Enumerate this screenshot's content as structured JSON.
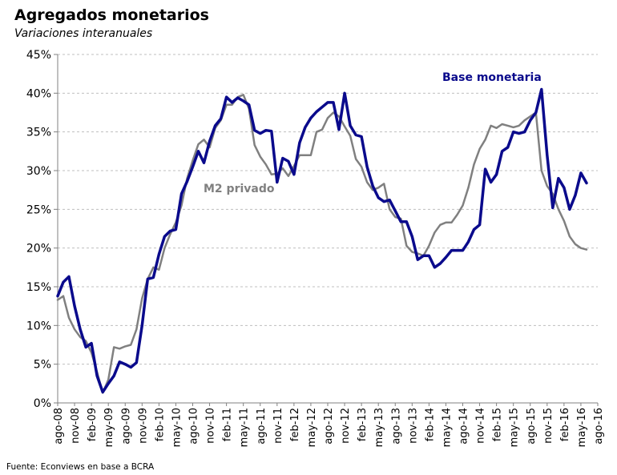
{
  "title": "Agregados monetarios",
  "subtitle": "Variaciones interanuales",
  "source": "Fuente: Econviews en base a BCRA",
  "colors": {
    "base_monetaria": "#0a0a8c",
    "m2_privado": "#808080",
    "grid": "#bfbfbf",
    "axis": "#808080"
  },
  "chart_data": {
    "type": "line",
    "ylim": [
      0,
      45
    ],
    "yticks": [
      0,
      5,
      10,
      15,
      20,
      25,
      30,
      35,
      40,
      45
    ],
    "ytick_labels": [
      "0%",
      "5%",
      "10%",
      "15%",
      "20%",
      "25%",
      "30%",
      "35%",
      "40%",
      "45%"
    ],
    "grid": "horizontal dashed",
    "x_start": "ago-08",
    "x_end": "ago-16",
    "x_tick_labels": [
      "ago-08",
      "nov-08",
      "feb-09",
      "may-09",
      "ago-09",
      "nov-09",
      "feb-10",
      "may-10",
      "ago-10",
      "nov-10",
      "feb-11",
      "may-11",
      "ago-11",
      "nov-11",
      "feb-12",
      "may-12",
      "ago-12",
      "nov-12",
      "feb-13",
      "may-13",
      "ago-13",
      "nov-13",
      "feb-14",
      "may-14",
      "ago-14",
      "nov-14",
      "feb-15",
      "may-15",
      "ago-15",
      "nov-15",
      "feb-16",
      "may-16",
      "ago-16"
    ],
    "series": [
      {
        "name": "Base monetaria",
        "color": "#0a0a8c",
        "points": [
          [
            "ago-08",
            13.8
          ],
          [
            "sep-08",
            15.6
          ],
          [
            "oct-08",
            16.3
          ],
          [
            "nov-08",
            12.5
          ],
          [
            "dic-08",
            9.5
          ],
          [
            "ene-09",
            7.2
          ],
          [
            "feb-09",
            7.7
          ],
          [
            "mar-09",
            3.5
          ],
          [
            "abr-09",
            1.4
          ],
          [
            "may-09",
            2.5
          ],
          [
            "jun-09",
            3.5
          ],
          [
            "jul-09",
            5.3
          ],
          [
            "ago-09",
            5.0
          ],
          [
            "sep-09",
            4.6
          ],
          [
            "oct-09",
            5.2
          ],
          [
            "nov-09",
            10.0
          ],
          [
            "dic-09",
            16.0
          ],
          [
            "ene-10",
            16.2
          ],
          [
            "feb-10",
            19.2
          ],
          [
            "mar-10",
            21.5
          ],
          [
            "abr-10",
            22.2
          ],
          [
            "may-10",
            22.4
          ],
          [
            "jun-10",
            27.0
          ],
          [
            "jul-10",
            28.6
          ],
          [
            "ago-10",
            30.5
          ],
          [
            "sep-10",
            32.5
          ],
          [
            "oct-10",
            31.0
          ],
          [
            "nov-10",
            33.8
          ],
          [
            "dic-10",
            35.8
          ],
          [
            "ene-11",
            36.7
          ],
          [
            "feb-11",
            39.5
          ],
          [
            "mar-11",
            38.8
          ],
          [
            "abr-11",
            39.4
          ],
          [
            "may-11",
            39.0
          ],
          [
            "jun-11",
            38.5
          ],
          [
            "jul-11",
            35.2
          ],
          [
            "ago-11",
            34.8
          ],
          [
            "sep-11",
            35.2
          ],
          [
            "oct-11",
            35.1
          ],
          [
            "nov-11",
            28.5
          ],
          [
            "dic-11",
            31.6
          ],
          [
            "ene-12",
            31.2
          ],
          [
            "feb-12",
            29.5
          ],
          [
            "mar-12",
            33.6
          ],
          [
            "abr-12",
            35.6
          ],
          [
            "may-12",
            36.8
          ],
          [
            "jun-12",
            37.6
          ],
          [
            "jul-12",
            38.2
          ],
          [
            "ago-12",
            38.8
          ],
          [
            "sep-12",
            38.8
          ],
          [
            "oct-12",
            35.3
          ],
          [
            "nov-12",
            40.0
          ],
          [
            "dic-12",
            35.8
          ],
          [
            "ene-13",
            34.6
          ],
          [
            "feb-13",
            34.4
          ],
          [
            "mar-13",
            30.5
          ],
          [
            "abr-13",
            28.0
          ],
          [
            "may-13",
            26.5
          ],
          [
            "jun-13",
            26.0
          ],
          [
            "jul-13",
            26.2
          ],
          [
            "ago-13",
            24.8
          ],
          [
            "sep-13",
            23.4
          ],
          [
            "oct-13",
            23.4
          ],
          [
            "nov-13",
            21.5
          ],
          [
            "dic-13",
            18.5
          ],
          [
            "ene-14",
            19.0
          ],
          [
            "feb-14",
            19.0
          ],
          [
            "mar-14",
            17.5
          ],
          [
            "abr-14",
            18.0
          ],
          [
            "may-14",
            18.8
          ],
          [
            "jun-14",
            19.7
          ],
          [
            "jul-14",
            19.7
          ],
          [
            "ago-14",
            19.7
          ],
          [
            "sep-14",
            20.8
          ],
          [
            "oct-14",
            22.4
          ],
          [
            "nov-14",
            23.0
          ],
          [
            "dic-14",
            30.2
          ],
          [
            "ene-15",
            28.5
          ],
          [
            "feb-15",
            29.5
          ],
          [
            "mar-15",
            32.5
          ],
          [
            "abr-15",
            33.0
          ],
          [
            "may-15",
            35.0
          ],
          [
            "jun-15",
            34.8
          ],
          [
            "jul-15",
            35.0
          ],
          [
            "ago-15",
            36.5
          ],
          [
            "sep-15",
            37.5
          ],
          [
            "oct-15",
            40.5
          ],
          [
            "nov-15",
            32.0
          ],
          [
            "dic-15",
            25.2
          ],
          [
            "ene-16",
            29.0
          ],
          [
            "feb-16",
            27.8
          ],
          [
            "mar-16",
            25.0
          ],
          [
            "abr-16",
            26.8
          ],
          [
            "may-16",
            29.7
          ],
          [
            "jun-16",
            28.4
          ]
        ]
      },
      {
        "name": "M2 privado",
        "color": "#808080",
        "points": [
          [
            "ago-08",
            13.3
          ],
          [
            "sep-08",
            13.8
          ],
          [
            "oct-08",
            11.0
          ],
          [
            "nov-08",
            9.5
          ],
          [
            "dic-08",
            8.5
          ],
          [
            "ene-09",
            8.0
          ],
          [
            "feb-09",
            6.5
          ],
          [
            "mar-09",
            4.0
          ],
          [
            "abr-09",
            1.3
          ],
          [
            "may-09",
            3.0
          ],
          [
            "jun-09",
            7.2
          ],
          [
            "jul-09",
            7.0
          ],
          [
            "ago-09",
            7.3
          ],
          [
            "sep-09",
            7.5
          ],
          [
            "oct-09",
            9.5
          ],
          [
            "nov-09",
            13.5
          ],
          [
            "dic-09",
            16.0
          ],
          [
            "ene-10",
            17.5
          ],
          [
            "feb-10",
            17.2
          ],
          [
            "mar-10",
            20.0
          ],
          [
            "abr-10",
            21.8
          ],
          [
            "may-10",
            23.3
          ],
          [
            "jun-10",
            25.5
          ],
          [
            "jul-10",
            29.0
          ],
          [
            "ago-10",
            31.3
          ],
          [
            "sep-10",
            33.4
          ],
          [
            "oct-10",
            34.0
          ],
          [
            "nov-10",
            33.0
          ],
          [
            "dic-10",
            35.5
          ],
          [
            "ene-11",
            36.5
          ],
          [
            "feb-11",
            38.5
          ],
          [
            "mar-11",
            38.5
          ],
          [
            "abr-11",
            39.5
          ],
          [
            "may-11",
            39.8
          ],
          [
            "jun-11",
            38.0
          ],
          [
            "jul-11",
            33.3
          ],
          [
            "ago-11",
            31.8
          ],
          [
            "sep-11",
            30.8
          ],
          [
            "oct-11",
            29.5
          ],
          [
            "nov-11",
            29.6
          ],
          [
            "dic-11",
            30.3
          ],
          [
            "ene-12",
            29.3
          ],
          [
            "feb-12",
            30.6
          ],
          [
            "mar-12",
            32.0
          ],
          [
            "abr-12",
            32.0
          ],
          [
            "may-12",
            32.0
          ],
          [
            "jun-12",
            35.0
          ],
          [
            "jul-12",
            35.3
          ],
          [
            "ago-12",
            36.8
          ],
          [
            "sep-12",
            37.5
          ],
          [
            "oct-12",
            37.0
          ],
          [
            "nov-12",
            35.7
          ],
          [
            "dic-12",
            34.5
          ],
          [
            "ene-13",
            31.5
          ],
          [
            "feb-13",
            30.5
          ],
          [
            "mar-13",
            28.5
          ],
          [
            "abr-13",
            27.5
          ],
          [
            "may-13",
            27.8
          ],
          [
            "jun-13",
            28.3
          ],
          [
            "jul-13",
            25.0
          ],
          [
            "ago-13",
            24.0
          ],
          [
            "sep-13",
            23.8
          ],
          [
            "oct-13",
            20.3
          ],
          [
            "nov-13",
            19.5
          ],
          [
            "dic-13",
            19.3
          ],
          [
            "ene-14",
            19.0
          ],
          [
            "feb-14",
            20.3
          ],
          [
            "mar-14",
            22.0
          ],
          [
            "abr-14",
            23.0
          ],
          [
            "may-14",
            23.3
          ],
          [
            "jun-14",
            23.3
          ],
          [
            "jul-14",
            24.3
          ],
          [
            "ago-14",
            25.5
          ],
          [
            "sep-14",
            27.8
          ],
          [
            "oct-14",
            30.8
          ],
          [
            "nov-14",
            32.8
          ],
          [
            "dic-14",
            34.0
          ],
          [
            "ene-15",
            35.8
          ],
          [
            "feb-15",
            35.5
          ],
          [
            "mar-15",
            36.0
          ],
          [
            "abr-15",
            35.8
          ],
          [
            "may-15",
            35.6
          ],
          [
            "jun-15",
            35.8
          ],
          [
            "jul-15",
            36.5
          ],
          [
            "ago-15",
            37.0
          ],
          [
            "sep-15",
            37.5
          ],
          [
            "oct-15",
            30.0
          ],
          [
            "nov-15",
            28.0
          ],
          [
            "dic-15",
            27.0
          ],
          [
            "ene-16",
            25.0
          ],
          [
            "feb-16",
            23.5
          ],
          [
            "mar-16",
            21.5
          ],
          [
            "abr-16",
            20.5
          ],
          [
            "may-16",
            20.0
          ],
          [
            "jun-16",
            19.8
          ]
        ]
      }
    ],
    "annotations": [
      {
        "text": "Base monetaria",
        "series": 0
      },
      {
        "text": "M2 privado",
        "series": 1
      }
    ]
  }
}
